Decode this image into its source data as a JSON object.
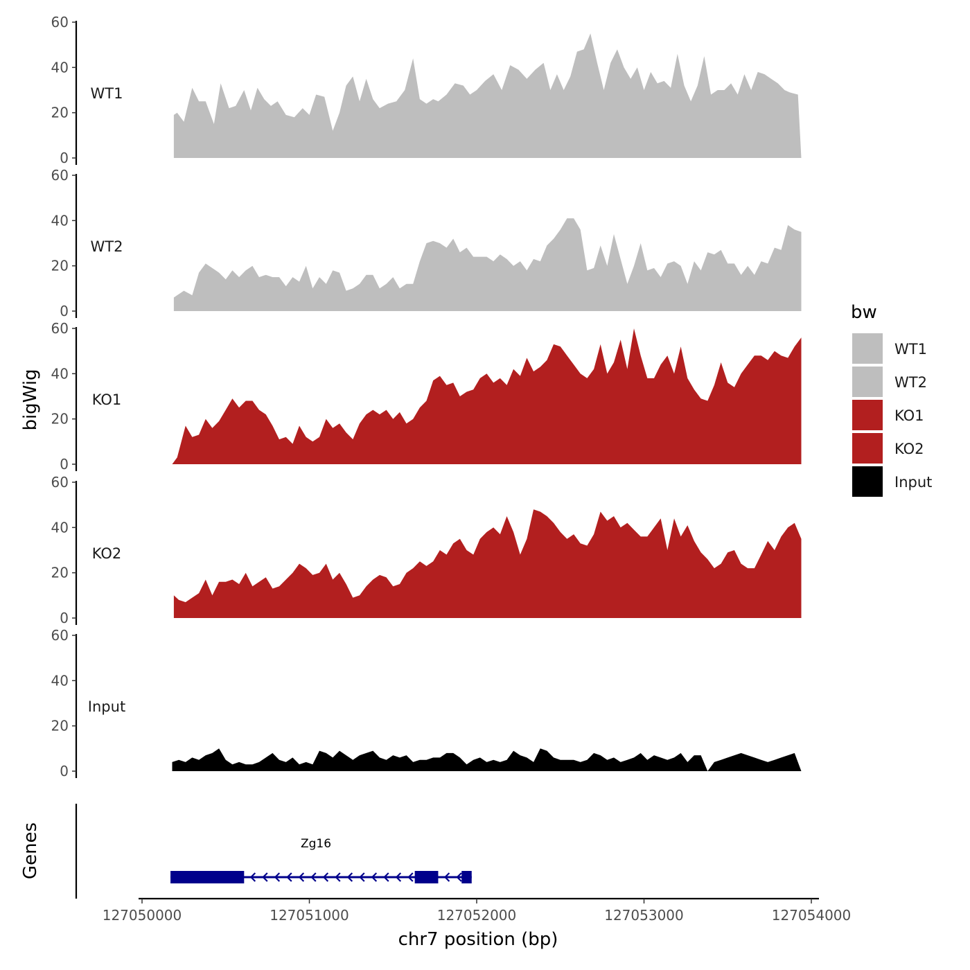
{
  "chart_data": {
    "type": "area",
    "ylabel": "bigWig",
    "xlabel": "chr7 position (bp)",
    "xlim": [
      127050000,
      127054000
    ],
    "x_ticks": [
      127050000,
      127051000,
      127052000,
      127053000,
      127054000
    ],
    "x_tick_labels": [
      "127050000",
      "127051000",
      "127052000",
      "127053000",
      "127054000"
    ],
    "ylim": [
      0,
      60
    ],
    "y_ticks": [
      0,
      20,
      40,
      60
    ],
    "y_tick_labels": [
      "0",
      "20",
      "40",
      "60"
    ],
    "legend": {
      "title": "bw",
      "position": "right",
      "entries": [
        {
          "label": "WT1",
          "color": "#bebebe"
        },
        {
          "label": "WT2",
          "color": "#bebebe"
        },
        {
          "label": "KO1",
          "color": "#b21f1f"
        },
        {
          "label": "KO2",
          "color": "#b21f1f"
        },
        {
          "label": "Input",
          "color": "#000000"
        }
      ]
    },
    "series": [
      {
        "name": "WT1",
        "color": "#bebebe",
        "x": [
          127050190,
          127050210,
          127050250,
          127050300,
          127050340,
          127050380,
          127050430,
          127050470,
          127050520,
          127050560,
          127050610,
          127050650,
          127050690,
          127050730,
          127050770,
          127050810,
          127050860,
          127050910,
          127050960,
          127051000,
          127051040,
          127051090,
          127051140,
          127051180,
          127051220,
          127051260,
          127051300,
          127051340,
          127051380,
          127051420,
          127051470,
          127051520,
          127051570,
          127051620,
          127051660,
          127051700,
          127051740,
          127051770,
          127051820,
          127051870,
          127051920,
          127051960,
          127052000,
          127052050,
          127052100,
          127052150,
          127052200,
          127052250,
          127052300,
          127052350,
          127052400,
          127052440,
          127052480,
          127052520,
          127052560,
          127052600,
          127052640,
          127052680,
          127052720,
          127052760,
          127052800,
          127052840,
          127052880,
          127052920,
          127052960,
          127053000,
          127053040,
          127053080,
          127053120,
          127053160,
          127053200,
          127053240,
          127053280,
          127053320,
          127053360,
          127053400,
          127053440,
          127053480,
          127053520,
          127053560,
          127053600,
          127053640,
          127053680,
          127053720,
          127053760,
          127053800,
          127053840,
          127053870,
          127053920,
          127053940
        ],
        "y": [
          19,
          20,
          16,
          31,
          25,
          25,
          15,
          33,
          22,
          23,
          30,
          21,
          31,
          26,
          23,
          25,
          19,
          18,
          22,
          19,
          28,
          27,
          12,
          20,
          32,
          36,
          25,
          35,
          26,
          22,
          24,
          25,
          30,
          44,
          26,
          24,
          26,
          25,
          28,
          33,
          32,
          28,
          30,
          34,
          37,
          30,
          41,
          39,
          35,
          39,
          42,
          30,
          37,
          30,
          36,
          47,
          48,
          55,
          42,
          30,
          42,
          48,
          40,
          35,
          40,
          30,
          38,
          33,
          34,
          31,
          46,
          32,
          25,
          32,
          45,
          28,
          30,
          30,
          33,
          28,
          37,
          30,
          38,
          37,
          35,
          33,
          30,
          29,
          28,
          0
        ]
      },
      {
        "name": "WT2",
        "color": "#bebebe",
        "x": [
          127050190,
          127050210,
          127050250,
          127050300,
          127050340,
          127050380,
          127050420,
          127050460,
          127050500,
          127050540,
          127050580,
          127050620,
          127050660,
          127050700,
          127050740,
          127050780,
          127050820,
          127050860,
          127050900,
          127050940,
          127050980,
          127051020,
          127051060,
          127051100,
          127051140,
          127051180,
          127051220,
          127051260,
          127051300,
          127051340,
          127051380,
          127051420,
          127051460,
          127051500,
          127051540,
          127051580,
          127051620,
          127051660,
          127051700,
          127051740,
          127051780,
          127051820,
          127051860,
          127051900,
          127051940,
          127051980,
          127052020,
          127052060,
          127052100,
          127052140,
          127052180,
          127052220,
          127052260,
          127052300,
          127052340,
          127052380,
          127052420,
          127052460,
          127052500,
          127052540,
          127052580,
          127052620,
          127052660,
          127052700,
          127052740,
          127052780,
          127052820,
          127052860,
          127052900,
          127052940,
          127052980,
          127053020,
          127053060,
          127053100,
          127053140,
          127053180,
          127053220,
          127053260,
          127053300,
          127053340,
          127053380,
          127053420,
          127053460,
          127053500,
          127053540,
          127053580,
          127053620,
          127053660,
          127053700,
          127053740,
          127053780,
          127053820,
          127053860,
          127053900,
          127053940
        ],
        "y": [
          6,
          7,
          9,
          7,
          17,
          21,
          19,
          17,
          14,
          18,
          15,
          18,
          20,
          15,
          16,
          15,
          15,
          11,
          15,
          13,
          20,
          10,
          15,
          12,
          18,
          17,
          9,
          10,
          12,
          16,
          16,
          10,
          12,
          15,
          10,
          12,
          12,
          22,
          30,
          31,
          30,
          28,
          32,
          26,
          28,
          24,
          24,
          24,
          22,
          25,
          23,
          20,
          22,
          18,
          23,
          22,
          29,
          32,
          36,
          41,
          41,
          36,
          18,
          19,
          29,
          20,
          34,
          23,
          12,
          20,
          30,
          18,
          19,
          15,
          21,
          22,
          20,
          12,
          22,
          18,
          26,
          25,
          27,
          21,
          21,
          16,
          20,
          16,
          22,
          21,
          28,
          27,
          38,
          36,
          35
        ]
      },
      {
        "name": "KO1",
        "color": "#b21f1f",
        "x": [
          127050180,
          127050210,
          127050260,
          127050300,
          127050340,
          127050380,
          127050420,
          127050460,
          127050500,
          127050540,
          127050580,
          127050620,
          127050660,
          127050700,
          127050740,
          127050780,
          127050820,
          127050860,
          127050900,
          127050940,
          127050980,
          127051020,
          127051060,
          127051100,
          127051140,
          127051180,
          127051220,
          127051260,
          127051300,
          127051340,
          127051380,
          127051420,
          127051460,
          127051500,
          127051540,
          127051580,
          127051620,
          127051660,
          127051700,
          127051740,
          127051780,
          127051820,
          127051860,
          127051900,
          127051940,
          127051980,
          127052020,
          127052060,
          127052100,
          127052140,
          127052180,
          127052220,
          127052260,
          127052300,
          127052340,
          127052380,
          127052420,
          127052460,
          127052500,
          127052540,
          127052580,
          127052620,
          127052660,
          127052700,
          127052740,
          127052780,
          127052820,
          127052860,
          127052900,
          127052940,
          127052980,
          127053020,
          127053060,
          127053100,
          127053140,
          127053180,
          127053220,
          127053260,
          127053300,
          127053340,
          127053380,
          127053420,
          127053460,
          127053500,
          127053540,
          127053580,
          127053620,
          127053660,
          127053700,
          127053740,
          127053780,
          127053820,
          127053860,
          127053900,
          127053940
        ],
        "y": [
          0,
          3,
          17,
          12,
          13,
          20,
          16,
          19,
          24,
          29,
          25,
          28,
          28,
          24,
          22,
          17,
          11,
          12,
          9,
          17,
          12,
          10,
          12,
          20,
          16,
          18,
          14,
          11,
          18,
          22,
          24,
          22,
          24,
          20,
          23,
          18,
          20,
          25,
          28,
          37,
          39,
          35,
          36,
          30,
          32,
          33,
          38,
          40,
          36,
          38,
          35,
          42,
          39,
          47,
          41,
          43,
          46,
          53,
          52,
          48,
          44,
          40,
          38,
          42,
          53,
          40,
          45,
          55,
          42,
          60,
          48,
          38,
          38,
          44,
          48,
          40,
          52,
          38,
          33,
          29,
          28,
          35,
          45,
          36,
          34,
          40,
          44,
          48,
          48,
          46,
          50,
          48,
          47,
          52,
          56
        ]
      },
      {
        "name": "KO2",
        "color": "#b21f1f",
        "x": [
          127050190,
          127050220,
          127050260,
          127050300,
          127050340,
          127050380,
          127050420,
          127050460,
          127050500,
          127050540,
          127050580,
          127050620,
          127050660,
          127050700,
          127050740,
          127050780,
          127050820,
          127050860,
          127050900,
          127050940,
          127050980,
          127051020,
          127051060,
          127051100,
          127051140,
          127051180,
          127051220,
          127051260,
          127051300,
          127051340,
          127051380,
          127051420,
          127051460,
          127051500,
          127051540,
          127051580,
          127051620,
          127051660,
          127051700,
          127051740,
          127051780,
          127051820,
          127051860,
          127051900,
          127051940,
          127051980,
          127052020,
          127052060,
          127052100,
          127052140,
          127052180,
          127052220,
          127052260,
          127052300,
          127052340,
          127052380,
          127052420,
          127052460,
          127052500,
          127052540,
          127052580,
          127052620,
          127052660,
          127052700,
          127052740,
          127052780,
          127052820,
          127052860,
          127052900,
          127052940,
          127052980,
          127053020,
          127053060,
          127053100,
          127053140,
          127053180,
          127053220,
          127053260,
          127053300,
          127053340,
          127053380,
          127053420,
          127053460,
          127053500,
          127053540,
          127053580,
          127053620,
          127053660,
          127053700,
          127053740,
          127053780,
          127053820,
          127053860,
          127053900,
          127053940
        ],
        "y": [
          10,
          8,
          7,
          9,
          11,
          17,
          10,
          16,
          16,
          17,
          15,
          20,
          14,
          16,
          18,
          13,
          14,
          17,
          20,
          24,
          22,
          19,
          20,
          24,
          17,
          20,
          15,
          9,
          10,
          14,
          17,
          19,
          18,
          14,
          15,
          20,
          22,
          25,
          23,
          25,
          30,
          28,
          33,
          35,
          30,
          28,
          35,
          38,
          40,
          37,
          45,
          38,
          28,
          35,
          48,
          47,
          45,
          42,
          38,
          35,
          37,
          33,
          32,
          37,
          47,
          43,
          45,
          40,
          42,
          39,
          36,
          36,
          40,
          44,
          30,
          44,
          36,
          41,
          34,
          29,
          26,
          22,
          24,
          29,
          30,
          24,
          22,
          22,
          28,
          34,
          30,
          36,
          40,
          42,
          35
        ]
      },
      {
        "name": "Input",
        "color": "#000000",
        "x": [
          127050180,
          127050220,
          127050260,
          127050300,
          127050340,
          127050380,
          127050420,
          127050460,
          127050500,
          127050540,
          127050580,
          127050620,
          127050660,
          127050700,
          127050740,
          127050780,
          127050820,
          127050860,
          127050900,
          127050940,
          127050980,
          127051020,
          127051060,
          127051100,
          127051140,
          127051180,
          127051220,
          127051260,
          127051300,
          127051340,
          127051380,
          127051420,
          127051460,
          127051500,
          127051540,
          127051580,
          127051620,
          127051660,
          127051700,
          127051740,
          127051780,
          127051820,
          127051860,
          127051900,
          127051940,
          127051980,
          127052020,
          127052060,
          127052100,
          127052140,
          127052180,
          127052220,
          127052260,
          127052300,
          127052340,
          127052380,
          127052420,
          127052460,
          127052500,
          127052540,
          127052580,
          127052620,
          127052660,
          127052700,
          127052740,
          127052780,
          127052820,
          127052860,
          127052900,
          127052940,
          127052980,
          127053020,
          127053060,
          127053100,
          127053140,
          127053180,
          127053220,
          127053260,
          127053300,
          127053340,
          127053380,
          127053420,
          127053460,
          127053500,
          127053540,
          127053580,
          127053620,
          127053660,
          127053700,
          127053740,
          127053780,
          127053820,
          127053860,
          127053900,
          127053940
        ],
        "y": [
          4,
          5,
          4,
          6,
          5,
          7,
          8,
          10,
          5,
          3,
          4,
          3,
          3,
          4,
          6,
          8,
          5,
          4,
          6,
          3,
          4,
          3,
          9,
          8,
          6,
          9,
          7,
          5,
          7,
          8,
          9,
          6,
          5,
          7,
          6,
          7,
          4,
          5,
          5,
          6,
          6,
          8,
          8,
          6,
          3,
          5,
          6,
          4,
          5,
          4,
          5,
          9,
          7,
          6,
          4,
          10,
          9,
          6,
          5,
          5,
          5,
          4,
          5,
          8,
          7,
          5,
          6,
          4,
          5,
          6,
          8,
          5,
          7,
          6,
          5,
          6,
          8,
          4,
          7,
          7,
          0,
          4,
          5,
          6,
          7,
          8,
          7,
          6,
          5,
          4,
          5,
          6,
          7,
          8,
          0
        ]
      }
    ],
    "gene_track": {
      "label": "Genes",
      "gene_name": "Zg16",
      "color": "#00008b",
      "strand": "-",
      "start": 127050170,
      "end": 127051970,
      "exons": [
        [
          127050170,
          127050610
        ],
        [
          127051630,
          127051770
        ],
        [
          127051910,
          127051970
        ]
      ]
    }
  }
}
